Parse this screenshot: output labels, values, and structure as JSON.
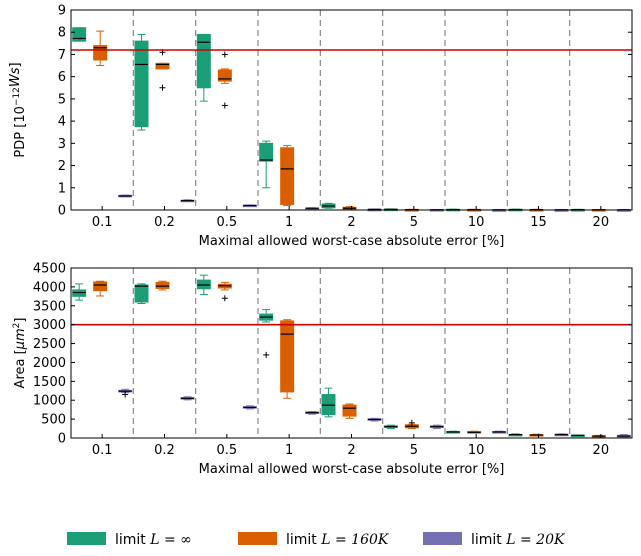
{
  "colors": {
    "inf": "#1b9e77",
    "k160": "#d95f02",
    "k20": "#7570b3",
    "threshold": "#cc0000"
  },
  "legend": [
    {
      "key": "inf",
      "prefix": "limit ",
      "math": "L = ∞"
    },
    {
      "key": "k160",
      "prefix": "limit ",
      "math": "L = 160K"
    },
    {
      "key": "k20",
      "prefix": "limit ",
      "math": "L = 20K"
    }
  ],
  "chart_data": [
    {
      "type": "box",
      "ylabel_prefix": "PDP [10",
      "ylabel_exp": "−12",
      "ylabel_suffix": "Ws]",
      "xlabel": "Maximal allowed worst-case absolute error [%]",
      "categories": [
        "0.1",
        "0.2",
        "0.5",
        "1",
        "2",
        "5",
        "10",
        "15",
        "20"
      ],
      "yticks": [
        "0",
        "1",
        "2",
        "3",
        "4",
        "5",
        "6",
        "7",
        "8",
        "9"
      ],
      "ylim": [
        0,
        9
      ],
      "threshold": 7.2,
      "series": [
        {
          "key": "inf",
          "boxes": [
            {
              "wlo": 7.6,
              "q1": 7.6,
              "med": 7.72,
              "q3": 8.2,
              "whi": 8.2,
              "outliers": []
            },
            {
              "wlo": 3.6,
              "q1": 3.75,
              "med": 6.55,
              "q3": 7.6,
              "whi": 7.9,
              "outliers": []
            },
            {
              "wlo": 4.9,
              "q1": 5.5,
              "med": 7.55,
              "q3": 7.9,
              "whi": 7.9,
              "outliers": []
            },
            {
              "wlo": 1.0,
              "q1": 2.2,
              "med": 2.25,
              "q3": 3.0,
              "whi": 3.1,
              "outliers": []
            },
            {
              "wlo": 0.08,
              "q1": 0.1,
              "med": 0.18,
              "q3": 0.27,
              "whi": 0.3,
              "outliers": []
            },
            {
              "wlo": 0.01,
              "q1": 0.02,
              "med": 0.03,
              "q3": 0.04,
              "whi": 0.05,
              "outliers": []
            },
            {
              "wlo": 0.01,
              "q1": 0.02,
              "med": 0.02,
              "q3": 0.03,
              "whi": 0.04,
              "outliers": []
            },
            {
              "wlo": 0.01,
              "q1": 0.02,
              "med": 0.02,
              "q3": 0.03,
              "whi": 0.04,
              "outliers": []
            },
            {
              "wlo": 0.01,
              "q1": 0.01,
              "med": 0.02,
              "q3": 0.02,
              "whi": 0.03,
              "outliers": []
            }
          ]
        },
        {
          "key": "k160",
          "boxes": [
            {
              "wlo": 6.5,
              "q1": 6.75,
              "med": 7.3,
              "q3": 7.4,
              "whi": 8.05,
              "outliers": []
            },
            {
              "wlo": 6.35,
              "q1": 6.35,
              "med": 6.55,
              "q3": 6.6,
              "whi": 6.6,
              "outliers": [
                7.1,
                5.5
              ]
            },
            {
              "wlo": 5.7,
              "q1": 5.8,
              "med": 5.9,
              "q3": 6.3,
              "whi": 6.35,
              "outliers": [
                7.0,
                4.7
              ]
            },
            {
              "wlo": 0.2,
              "q1": 0.25,
              "med": 1.85,
              "q3": 2.8,
              "whi": 2.9,
              "outliers": []
            },
            {
              "wlo": 0.02,
              "q1": 0.04,
              "med": 0.08,
              "q3": 0.12,
              "whi": 0.15,
              "outliers": []
            },
            {
              "wlo": 0.01,
              "q1": 0.01,
              "med": 0.02,
              "q3": 0.02,
              "whi": 0.03,
              "outliers": []
            },
            {
              "wlo": 0.01,
              "q1": 0.01,
              "med": 0.02,
              "q3": 0.02,
              "whi": 0.03,
              "outliers": []
            },
            {
              "wlo": 0.01,
              "q1": 0.01,
              "med": 0.02,
              "q3": 0.02,
              "whi": 0.03,
              "outliers": []
            },
            {
              "wlo": 0.01,
              "q1": 0.01,
              "med": 0.01,
              "q3": 0.02,
              "whi": 0.02,
              "outliers": []
            }
          ]
        },
        {
          "key": "k20",
          "boxes": [
            {
              "wlo": 0.6,
              "q1": 0.61,
              "med": 0.63,
              "q3": 0.66,
              "whi": 0.67,
              "outliers": []
            },
            {
              "wlo": 0.38,
              "q1": 0.4,
              "med": 0.42,
              "q3": 0.44,
              "whi": 0.46,
              "outliers": []
            },
            {
              "wlo": 0.18,
              "q1": 0.19,
              "med": 0.2,
              "q3": 0.22,
              "whi": 0.23,
              "outliers": []
            },
            {
              "wlo": 0.06,
              "q1": 0.07,
              "med": 0.08,
              "q3": 0.09,
              "whi": 0.1,
              "outliers": []
            },
            {
              "wlo": 0.02,
              "q1": 0.02,
              "med": 0.03,
              "q3": 0.03,
              "whi": 0.04,
              "outliers": []
            },
            {
              "wlo": 0.01,
              "q1": 0.01,
              "med": 0.01,
              "q3": 0.02,
              "whi": 0.02,
              "outliers": []
            },
            {
              "wlo": 0.01,
              "q1": 0.01,
              "med": 0.01,
              "q3": 0.01,
              "whi": 0.02,
              "outliers": []
            },
            {
              "wlo": 0.01,
              "q1": 0.01,
              "med": 0.01,
              "q3": 0.01,
              "whi": 0.02,
              "outliers": []
            },
            {
              "wlo": 0.0,
              "q1": 0.01,
              "med": 0.01,
              "q3": 0.01,
              "whi": 0.01,
              "outliers": []
            }
          ]
        }
      ]
    },
    {
      "type": "box",
      "ylabel_prefix": "Area [",
      "ylabel_unit": "μm",
      "ylabel_exp": "2",
      "ylabel_suffix": "]",
      "xlabel": "Maximal allowed worst-case absolute error [%]",
      "categories": [
        "0.1",
        "0.2",
        "0.5",
        "1",
        "2",
        "5",
        "10",
        "15",
        "20"
      ],
      "yticks": [
        "0",
        "500",
        "1000",
        "1500",
        "2000",
        "2500",
        "3000",
        "3500",
        "4000",
        "4500"
      ],
      "ylim": [
        0,
        4500
      ],
      "threshold": 3000,
      "series": [
        {
          "key": "inf",
          "boxes": [
            {
              "wlo": 3650,
              "q1": 3750,
              "med": 3850,
              "q3": 3920,
              "whi": 4080,
              "outliers": []
            },
            {
              "wlo": 3560,
              "q1": 3600,
              "med": 4020,
              "q3": 4050,
              "whi": 4080,
              "outliers": []
            },
            {
              "wlo": 3800,
              "q1": 3950,
              "med": 4050,
              "q3": 4180,
              "whi": 4310,
              "outliers": []
            },
            {
              "wlo": 3070,
              "q1": 3120,
              "med": 3200,
              "q3": 3280,
              "whi": 3400,
              "outliers": [
                2200
              ]
            },
            {
              "wlo": 560,
              "q1": 620,
              "med": 870,
              "q3": 1150,
              "whi": 1320,
              "outliers": []
            },
            {
              "wlo": 250,
              "q1": 280,
              "med": 300,
              "q3": 320,
              "whi": 340,
              "outliers": []
            },
            {
              "wlo": 140,
              "q1": 150,
              "med": 160,
              "q3": 170,
              "whi": 180,
              "outliers": []
            },
            {
              "wlo": 70,
              "q1": 80,
              "med": 90,
              "q3": 95,
              "whi": 110,
              "outliers": []
            },
            {
              "wlo": 60,
              "q1": 65,
              "med": 70,
              "q3": 75,
              "whi": 80,
              "outliers": []
            }
          ]
        },
        {
          "key": "k160",
          "boxes": [
            {
              "wlo": 3760,
              "q1": 3900,
              "med": 4050,
              "q3": 4130,
              "whi": 4150,
              "outliers": []
            },
            {
              "wlo": 3920,
              "q1": 3960,
              "med": 4020,
              "q3": 4120,
              "whi": 4150,
              "outliers": []
            },
            {
              "wlo": 3920,
              "q1": 3970,
              "med": 4030,
              "q3": 4070,
              "whi": 4120,
              "outliers": [
                3700
              ]
            },
            {
              "wlo": 1050,
              "q1": 1220,
              "med": 2750,
              "q3": 3100,
              "whi": 3130,
              "outliers": []
            },
            {
              "wlo": 520,
              "q1": 580,
              "med": 790,
              "q3": 870,
              "whi": 900,
              "outliers": []
            },
            {
              "wlo": 250,
              "q1": 270,
              "med": 310,
              "q3": 350,
              "whi": 360,
              "outliers": [
                400
              ]
            },
            {
              "wlo": 130,
              "q1": 140,
              "med": 150,
              "q3": 170,
              "whi": 180,
              "outliers": []
            },
            {
              "wlo": 60,
              "q1": 70,
              "med": 80,
              "q3": 90,
              "whi": 100,
              "outliers": []
            },
            {
              "wlo": 30,
              "q1": 40,
              "med": 50,
              "q3": 60,
              "whi": 70,
              "outliers": []
            }
          ]
        },
        {
          "key": "k20",
          "boxes": [
            {
              "wlo": 1200,
              "q1": 1220,
              "med": 1240,
              "q3": 1260,
              "whi": 1290,
              "outliers": [
                1150
              ]
            },
            {
              "wlo": 1010,
              "q1": 1030,
              "med": 1050,
              "q3": 1070,
              "whi": 1090,
              "outliers": []
            },
            {
              "wlo": 770,
              "q1": 790,
              "med": 810,
              "q3": 830,
              "whi": 850,
              "outliers": []
            },
            {
              "wlo": 630,
              "q1": 650,
              "med": 670,
              "q3": 690,
              "whi": 700,
              "outliers": []
            },
            {
              "wlo": 450,
              "q1": 470,
              "med": 490,
              "q3": 510,
              "whi": 520,
              "outliers": []
            },
            {
              "wlo": 250,
              "q1": 280,
              "med": 300,
              "q3": 320,
              "whi": 340,
              "outliers": []
            },
            {
              "wlo": 140,
              "q1": 150,
              "med": 160,
              "q3": 170,
              "whi": 180,
              "outliers": []
            },
            {
              "wlo": 70,
              "q1": 80,
              "med": 90,
              "q3": 100,
              "whi": 110,
              "outliers": []
            },
            {
              "wlo": 10,
              "q1": 30,
              "med": 50,
              "q3": 70,
              "whi": 90,
              "outliers": []
            }
          ]
        }
      ]
    }
  ]
}
